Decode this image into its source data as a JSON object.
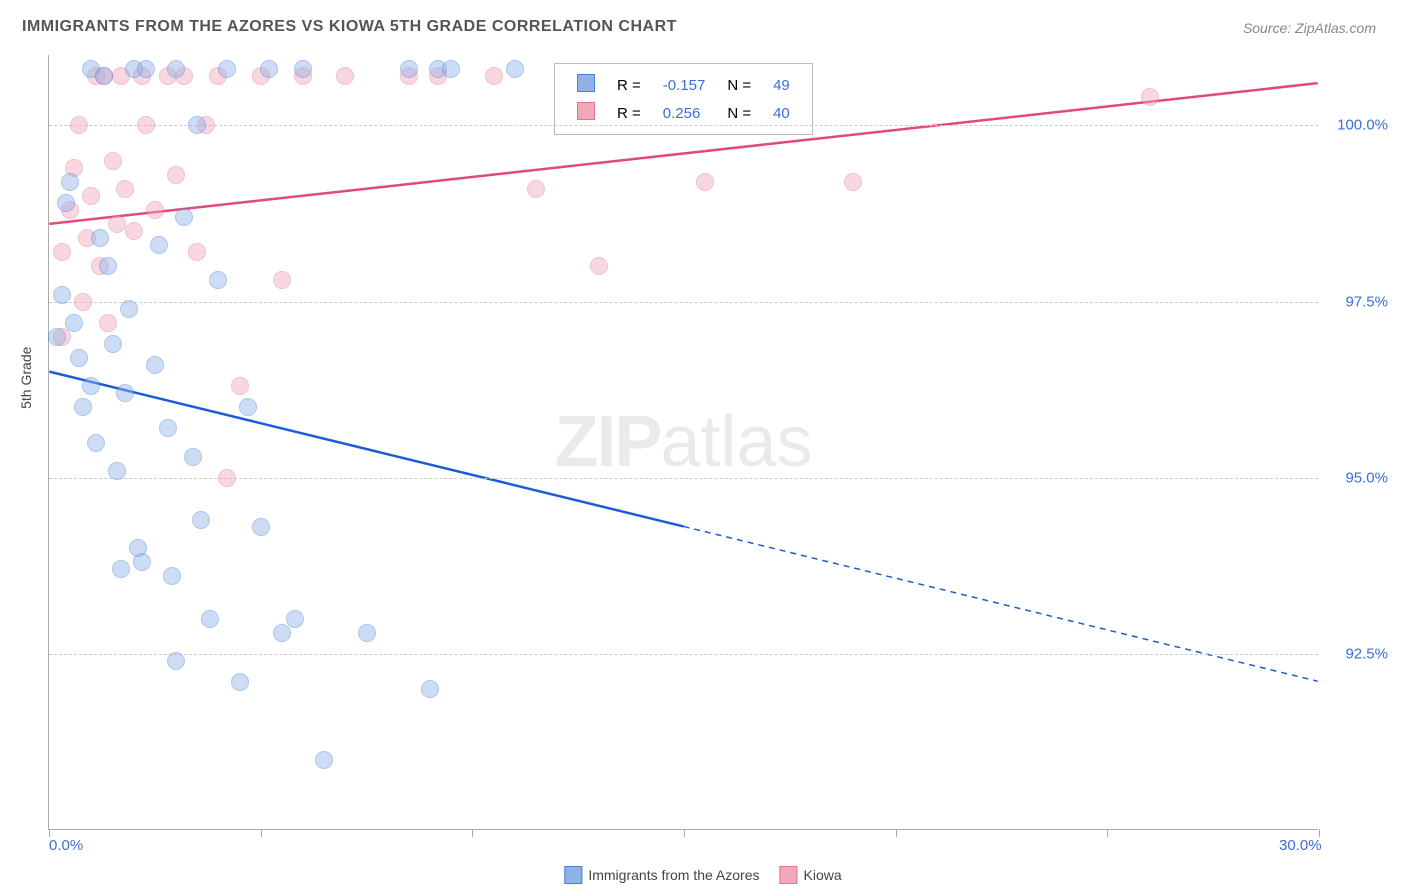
{
  "title": "IMMIGRANTS FROM THE AZORES VS KIOWA 5TH GRADE CORRELATION CHART",
  "source": "Source: ZipAtlas.com",
  "y_axis_title": "5th Grade",
  "watermark_bold": "ZIP",
  "watermark_light": "atlas",
  "chart": {
    "type": "scatter",
    "xlim": [
      0,
      30
    ],
    "ylim": [
      90,
      101
    ],
    "x_ticks_major": [
      0,
      5,
      10,
      15,
      20,
      25,
      30
    ],
    "x_tick_labels": {
      "0": "0.0%",
      "30": "30.0%"
    },
    "y_grid": [
      92.5,
      95.0,
      97.5,
      100.0
    ],
    "y_tick_labels": [
      "92.5%",
      "95.0%",
      "97.5%",
      "100.0%"
    ],
    "background_color": "#ffffff",
    "grid_color": "#cccccc",
    "axis_color": "#aaaaaa",
    "label_color": "#3b6fd6",
    "point_radius": 9,
    "point_opacity": 0.45
  },
  "series_a": {
    "name": "Immigrants from the Azores",
    "fill": "#8fb3e8",
    "stroke": "#4a7fd6",
    "r_value": "-0.157",
    "n_value": "49",
    "trend": {
      "x1": 0,
      "y1": 96.5,
      "x2": 15,
      "y2": 94.3,
      "x2_ext": 30,
      "y2_ext": 92.1,
      "color": "#1e5cd6",
      "width": 2.5
    },
    "points": [
      [
        0.2,
        97.0
      ],
      [
        0.3,
        97.6
      ],
      [
        0.4,
        98.9
      ],
      [
        0.5,
        99.2
      ],
      [
        0.6,
        97.2
      ],
      [
        0.7,
        96.7
      ],
      [
        0.8,
        96.0
      ],
      [
        1.0,
        100.8
      ],
      [
        1.0,
        96.3
      ],
      [
        1.1,
        95.5
      ],
      [
        1.2,
        98.4
      ],
      [
        1.3,
        100.7
      ],
      [
        1.4,
        98.0
      ],
      [
        1.5,
        96.9
      ],
      [
        1.6,
        95.1
      ],
      [
        1.7,
        93.7
      ],
      [
        1.8,
        96.2
      ],
      [
        1.9,
        97.4
      ],
      [
        2.0,
        100.8
      ],
      [
        2.1,
        94.0
      ],
      [
        2.2,
        93.8
      ],
      [
        2.3,
        100.8
      ],
      [
        2.5,
        96.6
      ],
      [
        2.6,
        98.3
      ],
      [
        2.8,
        95.7
      ],
      [
        2.9,
        93.6
      ],
      [
        3.0,
        92.4
      ],
      [
        3.0,
        100.8
      ],
      [
        3.2,
        98.7
      ],
      [
        3.4,
        95.3
      ],
      [
        3.5,
        100.0
      ],
      [
        3.6,
        94.4
      ],
      [
        3.8,
        93.0
      ],
      [
        4.0,
        97.8
      ],
      [
        4.2,
        100.8
      ],
      [
        4.5,
        92.1
      ],
      [
        4.7,
        96.0
      ],
      [
        5.0,
        94.3
      ],
      [
        5.2,
        100.8
      ],
      [
        5.5,
        92.8
      ],
      [
        5.8,
        93.0
      ],
      [
        6.0,
        100.8
      ],
      [
        6.5,
        91.0
      ],
      [
        7.5,
        92.8
      ],
      [
        8.5,
        100.8
      ],
      [
        9.0,
        92.0
      ],
      [
        9.2,
        100.8
      ],
      [
        9.5,
        100.8
      ],
      [
        11.0,
        100.8
      ]
    ]
  },
  "series_b": {
    "name": "Kiowa",
    "fill": "#f2a8bb",
    "stroke": "#e07694",
    "r_value": "0.256",
    "n_value": "40",
    "trend": {
      "x1": 0,
      "y1": 98.6,
      "x2": 30,
      "y2": 100.6,
      "color": "#e24a78",
      "width": 2.5
    },
    "points": [
      [
        0.3,
        97.0
      ],
      [
        0.3,
        98.2
      ],
      [
        0.5,
        98.8
      ],
      [
        0.6,
        99.4
      ],
      [
        0.7,
        100.0
      ],
      [
        0.8,
        97.5
      ],
      [
        0.9,
        98.4
      ],
      [
        1.0,
        99.0
      ],
      [
        1.1,
        100.7
      ],
      [
        1.2,
        98.0
      ],
      [
        1.3,
        100.7
      ],
      [
        1.4,
        97.2
      ],
      [
        1.5,
        99.5
      ],
      [
        1.6,
        98.6
      ],
      [
        1.7,
        100.7
      ],
      [
        1.8,
        99.1
      ],
      [
        2.0,
        98.5
      ],
      [
        2.2,
        100.7
      ],
      [
        2.3,
        100.0
      ],
      [
        2.5,
        98.8
      ],
      [
        2.8,
        100.7
      ],
      [
        3.0,
        99.3
      ],
      [
        3.2,
        100.7
      ],
      [
        3.5,
        98.2
      ],
      [
        3.7,
        100.0
      ],
      [
        4.0,
        100.7
      ],
      [
        4.2,
        95.0
      ],
      [
        4.5,
        96.3
      ],
      [
        5.0,
        100.7
      ],
      [
        5.5,
        97.8
      ],
      [
        6.0,
        100.7
      ],
      [
        7.0,
        100.7
      ],
      [
        8.5,
        100.7
      ],
      [
        9.2,
        100.7
      ],
      [
        10.5,
        100.7
      ],
      [
        11.5,
        99.1
      ],
      [
        13.0,
        98.0
      ],
      [
        15.5,
        99.2
      ],
      [
        19.0,
        99.2
      ],
      [
        26.0,
        100.4
      ]
    ]
  },
  "legend_box_headers": {
    "r": "R =",
    "n": "N ="
  }
}
